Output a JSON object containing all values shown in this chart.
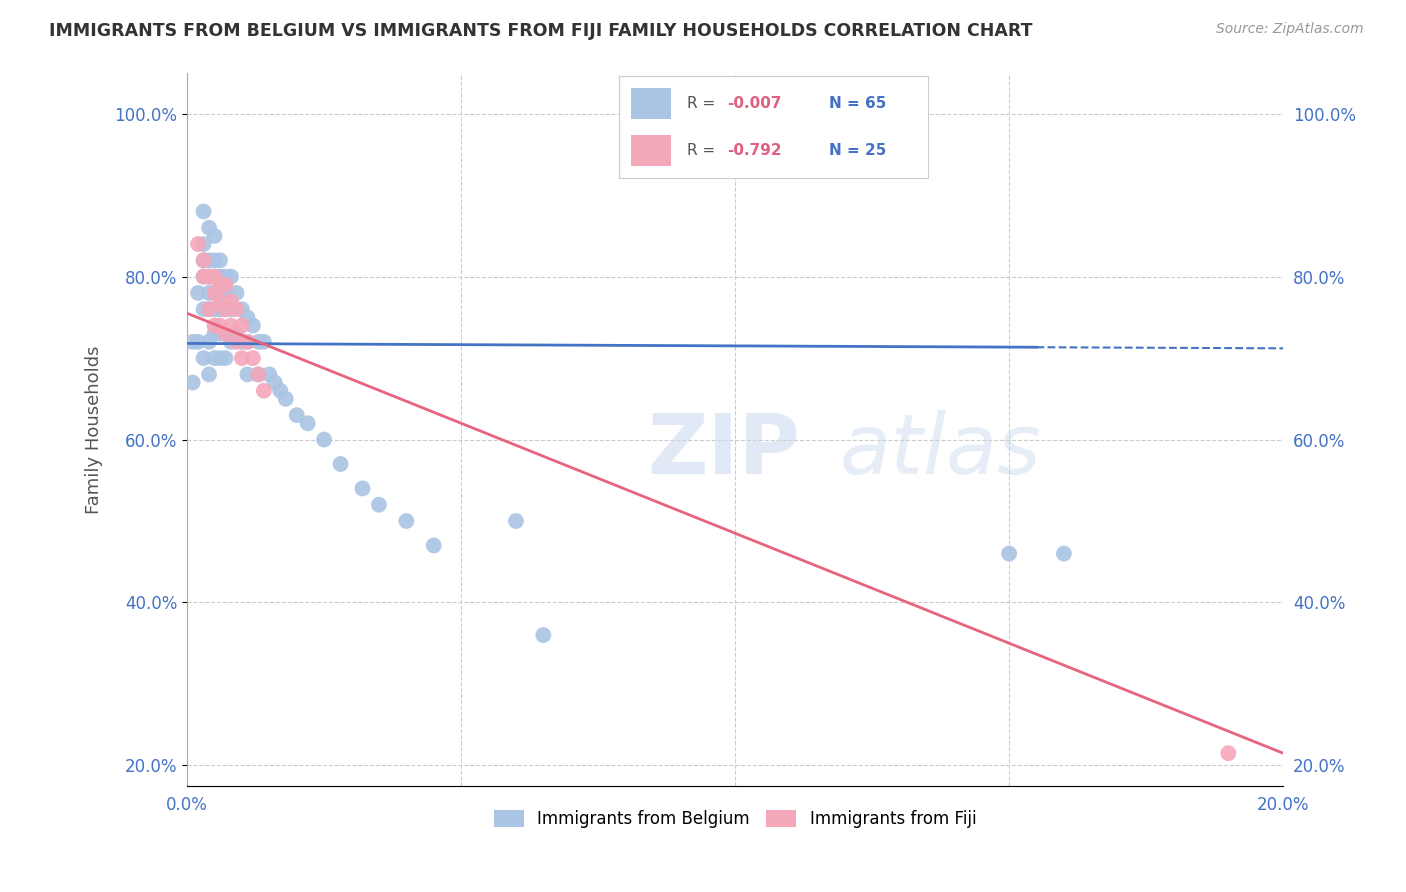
{
  "title": "IMMIGRANTS FROM BELGIUM VS IMMIGRANTS FROM FIJI FAMILY HOUSEHOLDS CORRELATION CHART",
  "source": "Source: ZipAtlas.com",
  "ylabel": "Family Households",
  "watermark": "ZIPatlas",
  "legend_belgium": "Immigrants from Belgium",
  "legend_fiji": "Immigrants from Fiji",
  "r_belgium": -0.007,
  "n_belgium": 65,
  "r_fiji": -0.792,
  "n_fiji": 25,
  "xmin": 0.0,
  "xmax": 0.2,
  "ymin": 0.175,
  "ymax": 1.05,
  "color_belgium": "#aac4e3",
  "color_fiji": "#f4a7b9",
  "line_color_belgium": "#4472c4",
  "line_color_fiji": "#e8637e",
  "background_color": "#ffffff",
  "belgium_line_y0": 0.718,
  "belgium_line_y1": 0.712,
  "fiji_line_y0": 0.755,
  "fiji_line_y1": 0.215,
  "belgium_x": [
    0.001,
    0.001,
    0.002,
    0.002,
    0.003,
    0.003,
    0.003,
    0.003,
    0.003,
    0.003,
    0.004,
    0.004,
    0.004,
    0.004,
    0.004,
    0.004,
    0.004,
    0.005,
    0.005,
    0.005,
    0.005,
    0.005,
    0.005,
    0.005,
    0.006,
    0.006,
    0.006,
    0.006,
    0.006,
    0.006,
    0.007,
    0.007,
    0.007,
    0.007,
    0.007,
    0.008,
    0.008,
    0.008,
    0.009,
    0.009,
    0.01,
    0.01,
    0.011,
    0.011,
    0.011,
    0.012,
    0.013,
    0.013,
    0.014,
    0.015,
    0.016,
    0.017,
    0.018,
    0.02,
    0.022,
    0.025,
    0.028,
    0.032,
    0.035,
    0.04,
    0.045,
    0.06,
    0.065,
    0.15,
    0.16
  ],
  "belgium_y": [
    0.72,
    0.67,
    0.78,
    0.72,
    0.88,
    0.84,
    0.82,
    0.8,
    0.76,
    0.7,
    0.86,
    0.82,
    0.8,
    0.78,
    0.76,
    0.72,
    0.68,
    0.85,
    0.82,
    0.8,
    0.78,
    0.76,
    0.73,
    0.7,
    0.82,
    0.8,
    0.78,
    0.76,
    0.73,
    0.7,
    0.8,
    0.78,
    0.76,
    0.73,
    0.7,
    0.8,
    0.76,
    0.72,
    0.78,
    0.73,
    0.76,
    0.72,
    0.75,
    0.72,
    0.68,
    0.74,
    0.72,
    0.68,
    0.72,
    0.68,
    0.67,
    0.66,
    0.65,
    0.63,
    0.62,
    0.6,
    0.57,
    0.54,
    0.52,
    0.5,
    0.47,
    0.5,
    0.36,
    0.46,
    0.46
  ],
  "fiji_x": [
    0.002,
    0.003,
    0.003,
    0.004,
    0.004,
    0.005,
    0.005,
    0.005,
    0.006,
    0.006,
    0.006,
    0.007,
    0.007,
    0.007,
    0.008,
    0.008,
    0.009,
    0.009,
    0.01,
    0.01,
    0.011,
    0.012,
    0.013,
    0.014,
    0.19
  ],
  "fiji_y": [
    0.84,
    0.82,
    0.8,
    0.8,
    0.76,
    0.8,
    0.78,
    0.74,
    0.79,
    0.77,
    0.74,
    0.79,
    0.76,
    0.73,
    0.77,
    0.74,
    0.76,
    0.72,
    0.74,
    0.7,
    0.72,
    0.7,
    0.68,
    0.66,
    0.215
  ]
}
